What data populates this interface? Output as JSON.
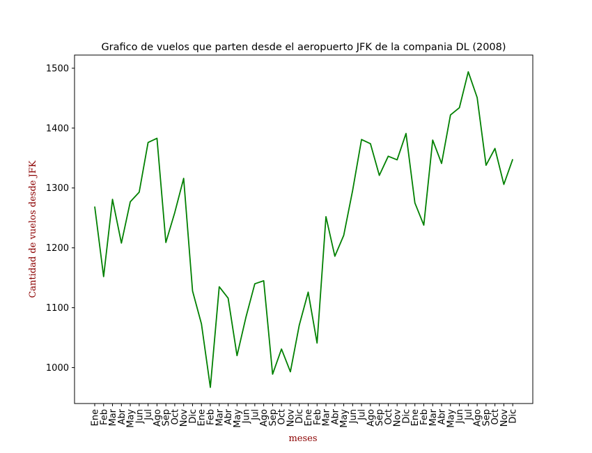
{
  "chart_data": {
    "type": "line",
    "title": "Grafico de vuelos que parten desde el aeropuerto JFK de la compania DL (2008)",
    "xlabel": "meses",
    "ylabel": "Cantidad de vuelos desde JFK",
    "label_color": "#8b0000",
    "line_color": "#008000",
    "ylim": [
      940,
      1522
    ],
    "yticks": [
      1000,
      1100,
      1200,
      1300,
      1400,
      1500
    ],
    "categories": [
      "Ene",
      "Feb",
      "Mar",
      "Abr",
      "May",
      "Jun",
      "Jul",
      "Ago",
      "Sep",
      "Oct",
      "Nov",
      "Dic",
      "Ene",
      "Feb",
      "Mar",
      "Abr",
      "May",
      "Jun",
      "Jul",
      "Ago",
      "Sep",
      "Oct",
      "Nov",
      "Dic",
      "Ene",
      "Feb",
      "Mar",
      "Abr",
      "May",
      "Jun",
      "Jul",
      "Ago",
      "Sep",
      "Oct",
      "Nov",
      "Dic",
      "Ene",
      "Feb",
      "Mar",
      "Abr",
      "May",
      "Jun",
      "Jul",
      "Ago",
      "Sep",
      "Oct",
      "Nov",
      "Dic"
    ],
    "series": [
      {
        "values": [
          1269,
          1152,
          1281,
          1208,
          1277,
          1293,
          1376,
          1383,
          1209,
          1259,
          1316,
          1128,
          1073,
          967,
          1135,
          1116,
          1020,
          1084,
          1140,
          1145,
          989,
          1031,
          993,
          1071,
          1126,
          1041,
          1252,
          1186,
          1221,
          1296,
          1381,
          1374,
          1321,
          1353,
          1347,
          1391,
          1275,
          1238,
          1380,
          1341,
          1422,
          1434,
          1494,
          1451,
          1338,
          1366,
          1306,
          1348
        ]
      }
    ],
    "grid": false,
    "legend": false
  }
}
